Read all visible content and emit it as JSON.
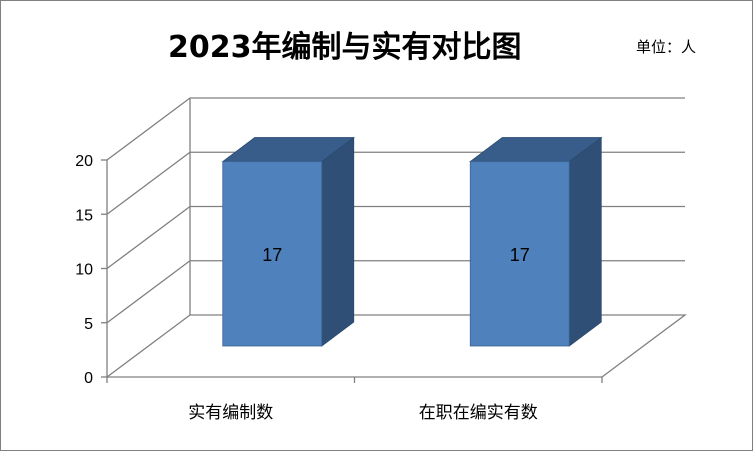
{
  "chart_data": {
    "type": "bar",
    "title": "2023年编制与实有对比图",
    "unit_label": "单位：人",
    "categories": [
      "实有编制数",
      "在职在编实有数"
    ],
    "values": [
      17,
      17
    ],
    "ylim": [
      0,
      20
    ],
    "yticks": [
      0,
      5,
      10,
      15,
      20
    ],
    "data_labels": [
      "17",
      "17"
    ],
    "grid": true,
    "legend": "none",
    "colors": {
      "bar_front": "#4F81BD",
      "bar_side": "#2F4F77",
      "bar_top": "#385D8A",
      "grid": "#808080",
      "frame": "#808080"
    }
  }
}
